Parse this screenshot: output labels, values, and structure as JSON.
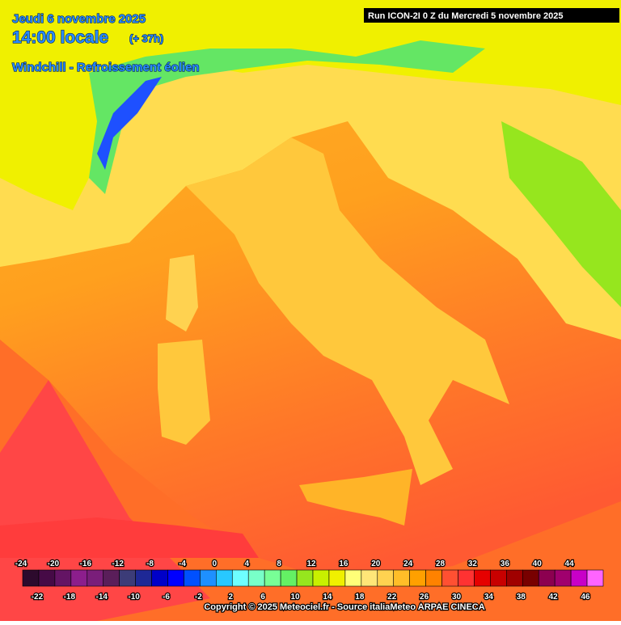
{
  "header": {
    "date": "Jeudi 6 novembre 2025",
    "time": "14:00 locale",
    "offset": "(+ 37h)",
    "product": "Windchill - Refroissement éolien",
    "run": "Run ICON-2I 0 Z du Mercredi 5 novembre 2025"
  },
  "legend": {
    "values": [
      -24,
      -22,
      -20,
      -18,
      -16,
      -14,
      -12,
      -10,
      -8,
      -6,
      -4,
      -2,
      0,
      2,
      4,
      6,
      8,
      10,
      12,
      14,
      16,
      18,
      20,
      22,
      24,
      26,
      28,
      30,
      32,
      34,
      36,
      38,
      40,
      42,
      44,
      46
    ],
    "colors": [
      "#2d0a2d",
      "#460a46",
      "#641464",
      "#8c1e8c",
      "#7a1e7a",
      "#5a1e5a",
      "#3c3c78",
      "#1e2896",
      "#0000c8",
      "#0000ff",
      "#0050ff",
      "#1e90ff",
      "#28c8ff",
      "#6effff",
      "#78ffc8",
      "#78ff96",
      "#64f064",
      "#96e61e",
      "#c8f000",
      "#f0f000",
      "#ffff78",
      "#ffe678",
      "#ffd250",
      "#ffbe28",
      "#ffa000",
      "#ff8200",
      "#ff5032",
      "#ff3232",
      "#e60000",
      "#c80000",
      "#a00000",
      "#780000",
      "#8c0050",
      "#a0006e",
      "#c800c8",
      "#ff64ff"
    ]
  },
  "footer": {
    "copyright": "Copyright © 2025 Meteociel.fr - Source italiaMeteo ARPAE CINECA"
  }
}
